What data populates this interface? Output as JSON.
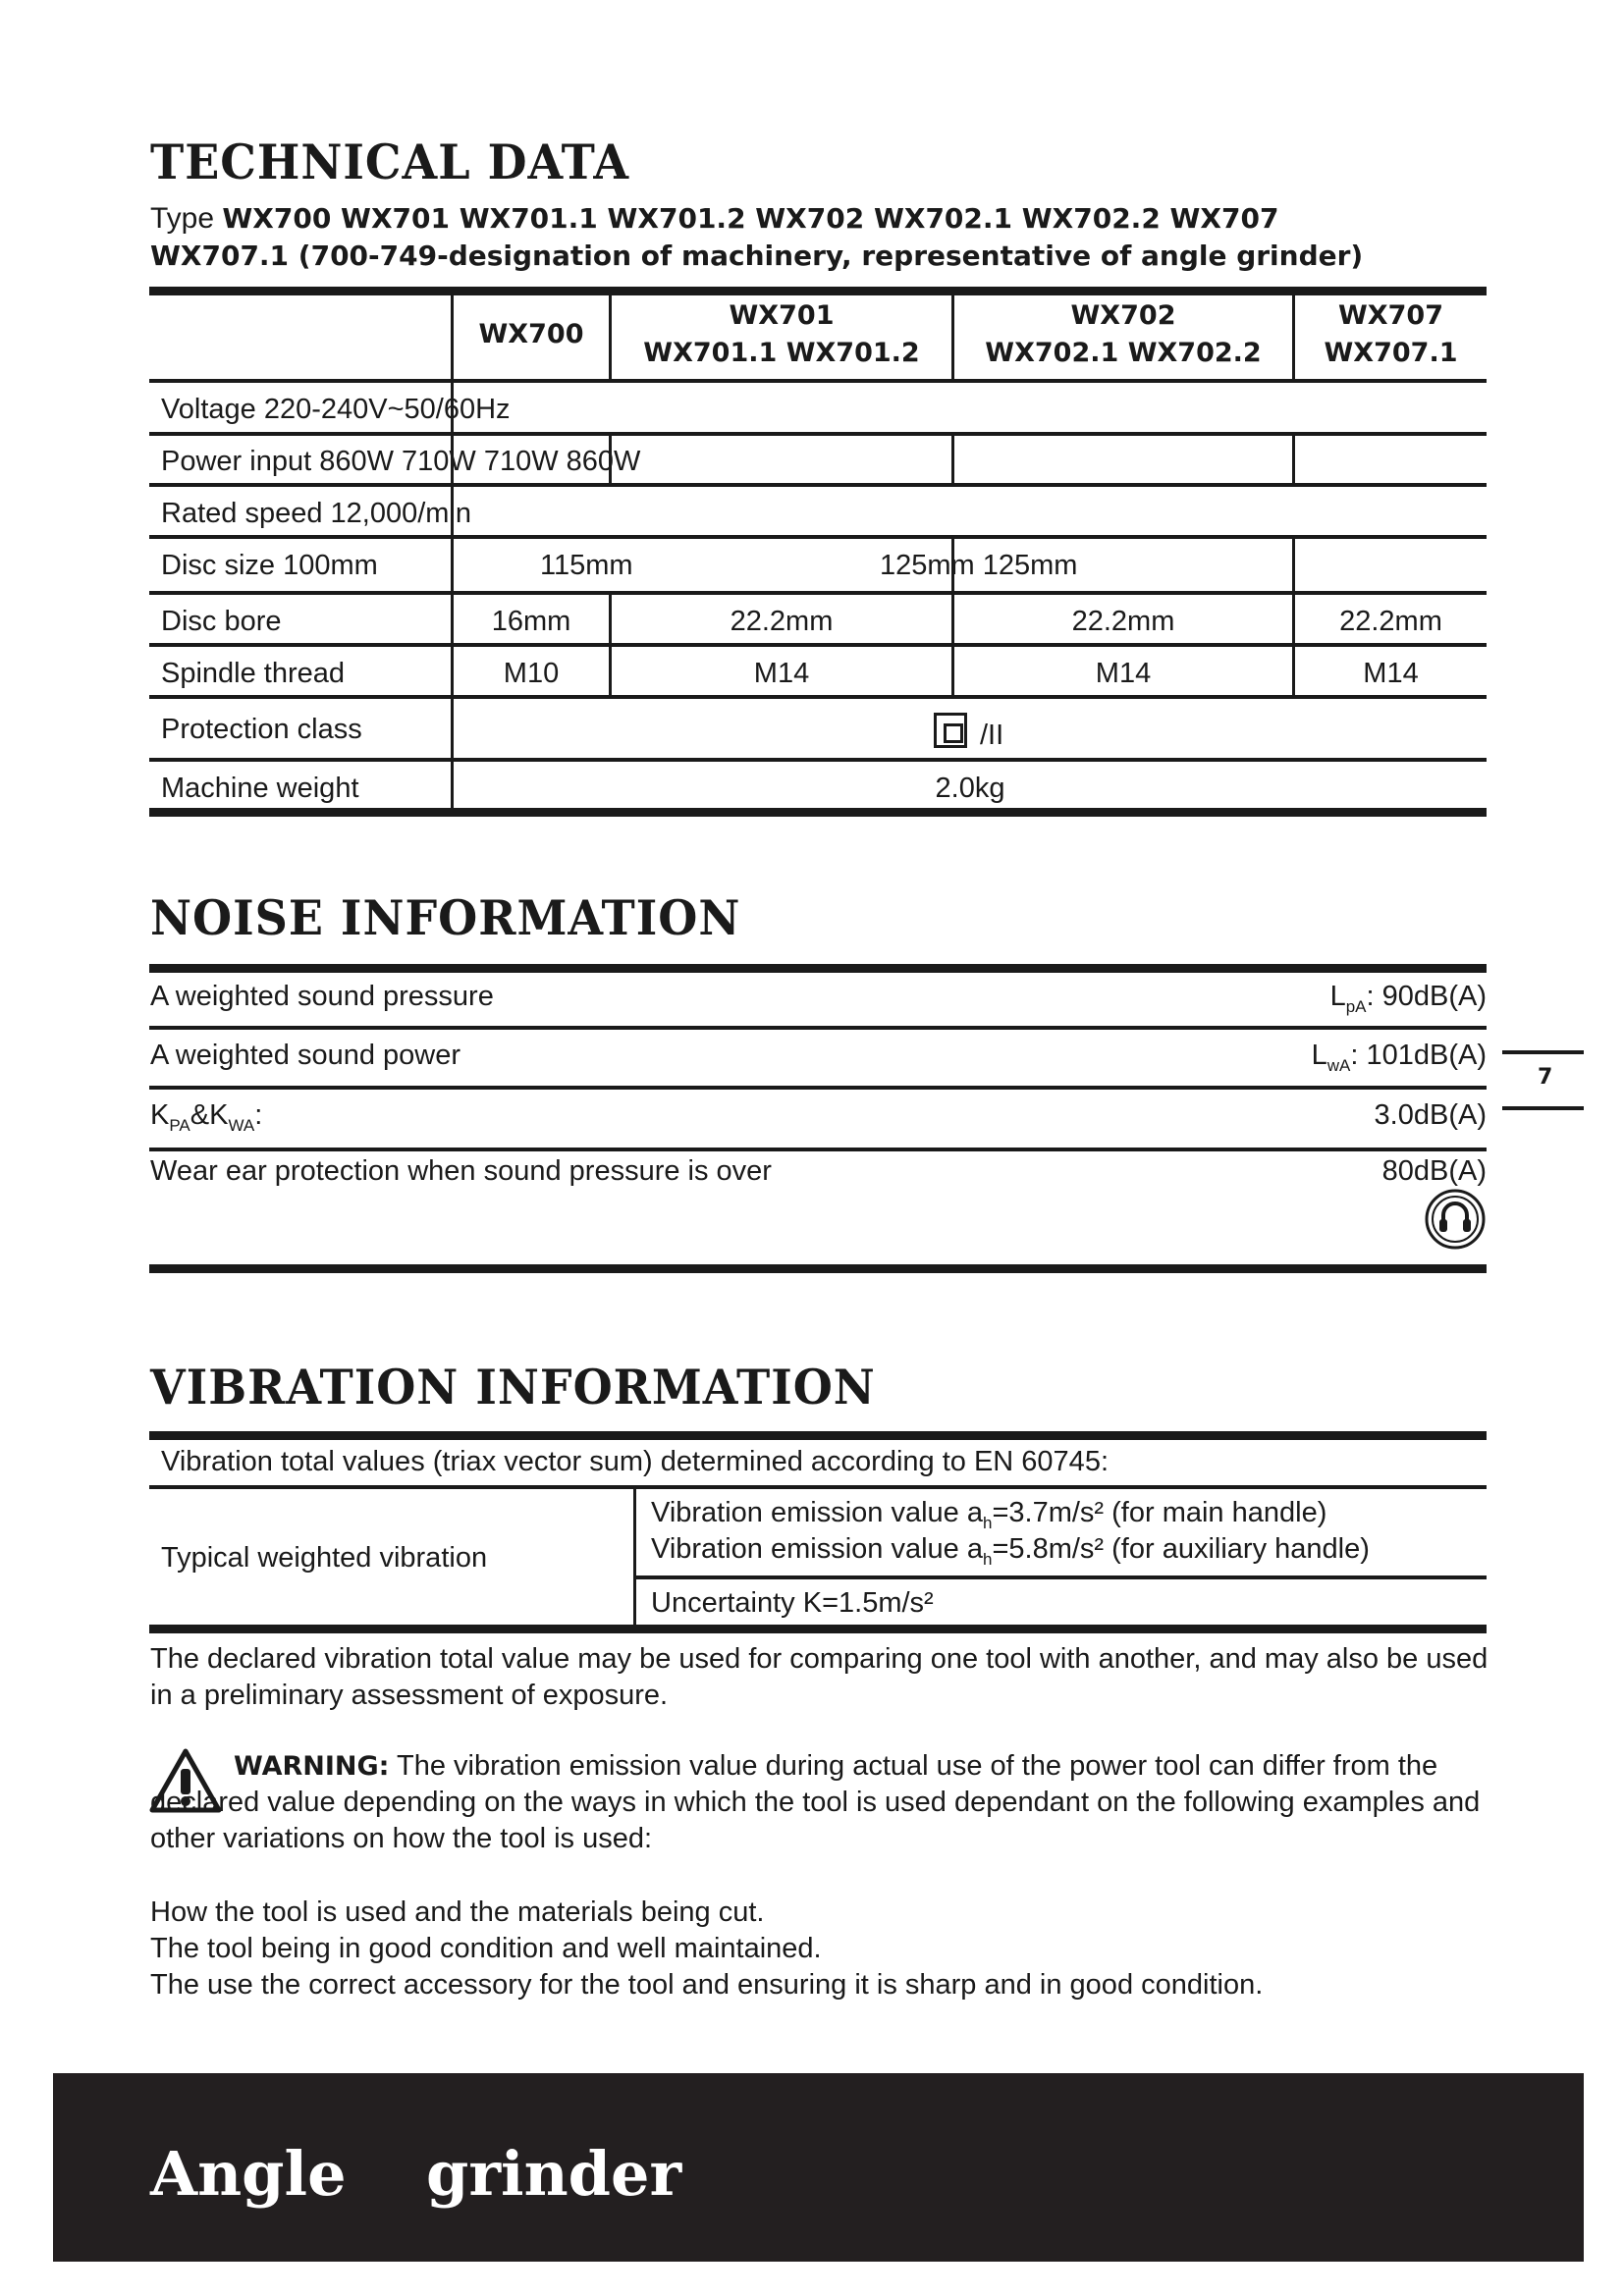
{
  "technical": {
    "title": "TECHNICAL DATA",
    "type_prefix": "Type",
    "type_models": "WX700 WX701 WX701.1 WX701.2 WX702 WX702.1 WX702.2 WX707",
    "type_line2": "WX707.1 (700-749-designation of machinery, representative of angle grinder)",
    "headers": [
      {
        "line1": "WX700",
        "line2": ""
      },
      {
        "line1": "WX701",
        "line2": "WX701.1 WX701.2"
      },
      {
        "line1": "WX702",
        "line2": "WX702.1 WX702.2"
      },
      {
        "line1": "WX707",
        "line2": "WX707.1"
      }
    ],
    "voltage": "Voltage 220-240V~50/60Hz",
    "power": "Power input 860W 710W 710W 860W",
    "speed": "Rated speed 12,000/min",
    "disc_size_label": "Disc size 100mm",
    "disc_size_115": "115mm",
    "disc_size_125": "125mm 125mm",
    "disc_bore_label": "Disc bore",
    "disc_bore": [
      "16mm",
      "22.2mm",
      "22.2mm",
      "22.2mm"
    ],
    "spindle_label": "Spindle thread",
    "spindle": [
      "M10",
      "M14",
      "M14",
      "M14"
    ],
    "protection_label": "Protection class",
    "protection_value": "/II",
    "weight_label": "Machine weight",
    "weight_value": "2.0kg"
  },
  "noise": {
    "title": "NOISE INFORMATION",
    "rows": [
      {
        "label": "A weighted sound pressure",
        "sym": "L",
        "sub": "pA",
        "value": ": 90dB(A)"
      },
      {
        "label": "A weighted sound power",
        "sym": "L",
        "sub": "wA",
        "value": ": 101dB(A)"
      }
    ],
    "k_label_a": "K",
    "k_sub_a": "PA",
    "k_amp": "&K",
    "k_sub_b": "WA",
    "k_colon": ":",
    "k_value": "3.0dB(A)",
    "ear_label": "Wear ear protection when sound pressure is over",
    "ear_value": "80dB(A)"
  },
  "vibration": {
    "title": "VIBRATION INFORMATION",
    "intro": "Vibration total values (triax vector sum) determined according to EN 60745:",
    "typical_label": "Typical weighted vibration",
    "v1_pre": "Vibration emission value a",
    "v1_sub": "h",
    "v1_post": "=3.7m/s² (for main handle)",
    "v2_pre": "Vibration emission value a",
    "v2_sub": "h",
    "v2_post": "=5.8m/s² (for auxiliary handle)",
    "uncertainty": "Uncertainty K=1.5m/s²",
    "declared": "The declared vibration total value may be used for comparing one tool with another, and may also be used in a preliminary assessment of exposure.",
    "warning_label": "WARNING:",
    "warning_text": " The vibration emission value during actual use of the power tool can differ from the declared value depending on the ways in which the tool is used dependant on the following examples and other variations on how the tool is used:",
    "list": [
      "How the tool is used and the materials being cut.",
      "The tool being in good condition and well maintained.",
      "The use the correct accessory for the tool and ensuring it is sharp and in good condition."
    ]
  },
  "page_number": "7",
  "footer": {
    "word1": "Angle",
    "word2": "grinder"
  },
  "colors": {
    "ink": "#1a1a1a",
    "footer_bg": "#231f20",
    "footer_text": "#ffffff"
  }
}
